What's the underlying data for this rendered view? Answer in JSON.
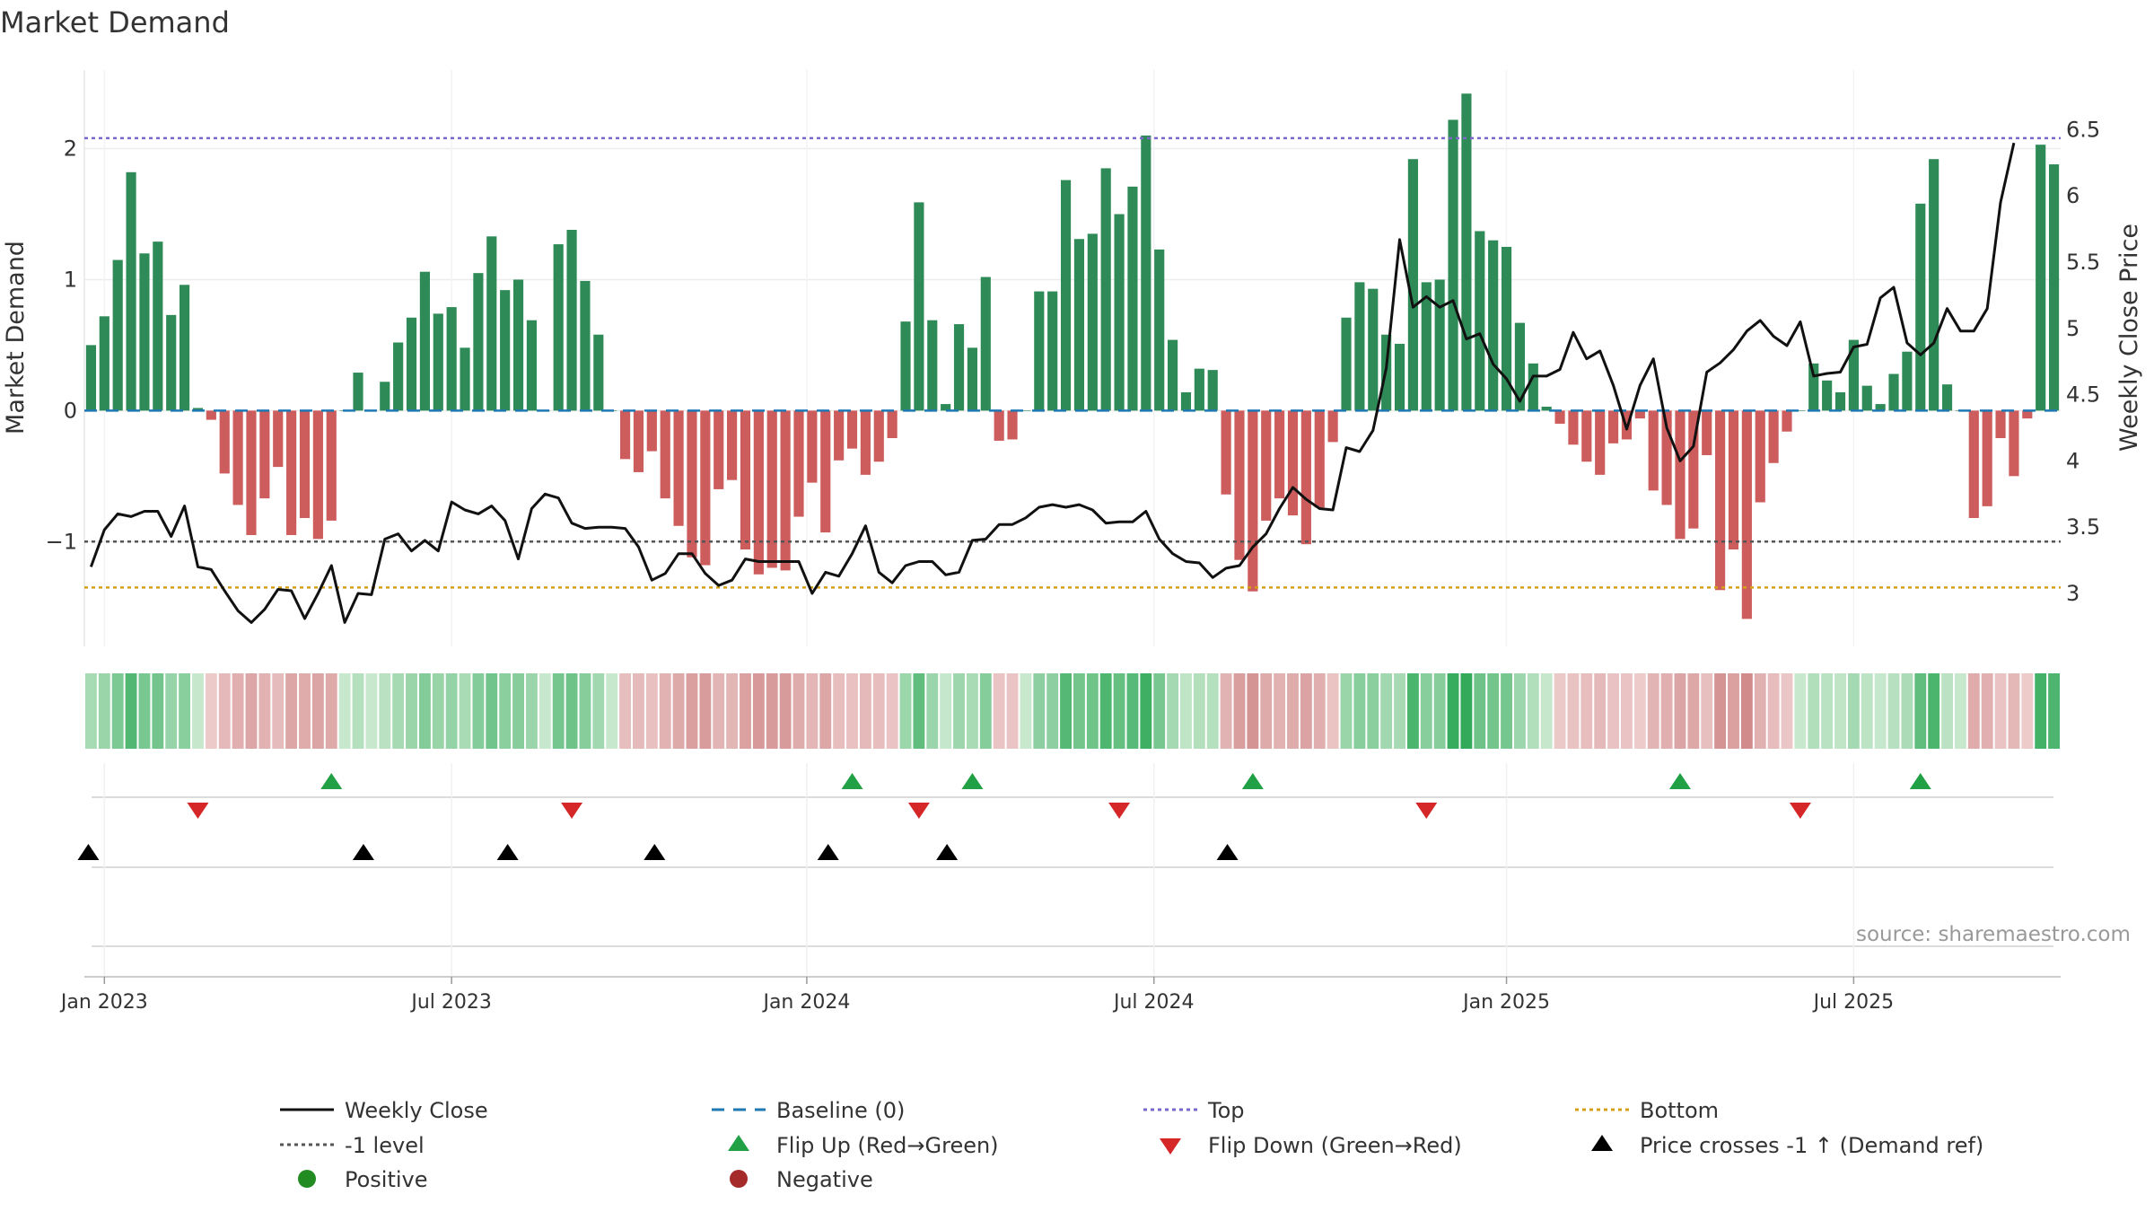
{
  "chart_data": {
    "type": "bar",
    "title": "Market Demand",
    "ylabel_left": "Market Demand",
    "ylabel_right": "Weekly Close Price",
    "ylim_left": [
      -1.8,
      2.6
    ],
    "ylim_right": [
      2.6,
      6.95
    ],
    "yticks_left": [
      {
        "v": 2,
        "t": "2"
      },
      {
        "v": 1,
        "t": "1"
      },
      {
        "v": 0,
        "t": "0"
      },
      {
        "v": -1,
        "t": "−1"
      }
    ],
    "yticks_right": [
      {
        "v": 6.5,
        "t": "6.5"
      },
      {
        "v": 6,
        "t": "6"
      },
      {
        "v": 5.5,
        "t": "5.5"
      },
      {
        "v": 5,
        "t": "5"
      },
      {
        "v": 4.5,
        "t": "4.5"
      },
      {
        "v": 4,
        "t": "4"
      },
      {
        "v": 3.5,
        "t": "3.5"
      },
      {
        "v": 3,
        "t": "3"
      }
    ],
    "xticks": [
      {
        "w": 0,
        "t": "Jan 2023"
      },
      {
        "w": 26,
        "t": "Jul 2023"
      },
      {
        "w": 52.6,
        "t": "Jan 2024"
      },
      {
        "w": 78.6,
        "t": "Jul 2024"
      },
      {
        "w": 105,
        "t": "Jan 2025"
      },
      {
        "w": 131,
        "t": "Jul 2025"
      }
    ],
    "week_start_offset": -1.5,
    "reference_lines": {
      "top": 2.08,
      "bottom": -1.35,
      "level": -1.0,
      "baseline": 0
    },
    "demand": [
      0.5,
      0.72,
      1.15,
      1.82,
      1.2,
      1.29,
      0.73,
      0.96,
      0.02,
      -0.07,
      -0.48,
      -0.72,
      -0.95,
      -0.67,
      -0.43,
      -0.95,
      -0.82,
      -0.98,
      -0.84,
      0.0,
      0.29,
      0.0,
      0.22,
      0.52,
      0.71,
      1.06,
      0.74,
      0.79,
      0.48,
      1.05,
      1.33,
      0.92,
      1.0,
      0.69,
      0.0,
      1.27,
      1.38,
      0.99,
      0.58,
      0.0,
      -0.37,
      -0.47,
      -0.31,
      -0.67,
      -0.88,
      -1.12,
      -1.18,
      -0.6,
      -0.53,
      -1.06,
      -1.25,
      -1.2,
      -1.22,
      -0.81,
      -0.55,
      -0.93,
      -0.38,
      -0.29,
      -0.49,
      -0.39,
      -0.21,
      0.68,
      1.59,
      0.69,
      0.05,
      0.66,
      0.48,
      1.02,
      -0.23,
      -0.22,
      0.0,
      0.91,
      0.91,
      1.76,
      1.31,
      1.35,
      1.85,
      1.5,
      1.71,
      2.1,
      1.23,
      0.54,
      0.14,
      0.32,
      0.31,
      -0.64,
      -1.14,
      -1.38,
      -0.84,
      -0.67,
      -0.8,
      -1.02,
      -0.74,
      -0.24,
      0.71,
      0.98,
      0.93,
      0.58,
      0.51,
      1.92,
      0.98,
      1.0,
      2.22,
      2.42,
      1.37,
      1.3,
      1.25,
      0.67,
      0.36,
      0.03,
      -0.1,
      -0.26,
      -0.39,
      -0.49,
      -0.25,
      -0.22,
      -0.06,
      -0.61,
      -0.72,
      -0.98,
      -0.9,
      -0.34,
      -1.37,
      -1.06,
      -1.59,
      -0.7,
      -0.4,
      -0.16,
      0.0,
      0.36,
      0.23,
      0.14,
      0.54,
      0.19,
      0.05,
      0.28,
      0.45,
      1.58,
      1.92,
      0.2,
      0.0,
      -0.82,
      -0.73,
      -0.21,
      -0.5,
      -0.06,
      2.03,
      1.88
    ],
    "weekly_close": [
      3.2,
      3.48,
      3.6,
      3.58,
      3.62,
      3.62,
      3.43,
      3.66,
      3.2,
      3.18,
      3.02,
      2.87,
      2.78,
      2.88,
      3.03,
      3.02,
      2.81,
      3.0,
      3.21,
      2.78,
      3.0,
      2.99,
      3.41,
      3.45,
      3.32,
      3.4,
      3.32,
      3.69,
      3.63,
      3.6,
      3.66,
      3.55,
      3.26,
      3.64,
      3.75,
      3.72,
      3.53,
      3.49,
      3.5,
      3.5,
      3.49,
      3.35,
      3.1,
      3.15,
      3.3,
      3.3,
      3.15,
      3.06,
      3.1,
      3.26,
      3.24,
      3.24,
      3.24,
      3.24,
      3.0,
      3.16,
      3.13,
      3.3,
      3.51,
      3.16,
      3.08,
      3.21,
      3.24,
      3.24,
      3.14,
      3.16,
      3.4,
      3.41,
      3.52,
      3.52,
      3.57,
      3.65,
      3.67,
      3.65,
      3.67,
      3.63,
      3.53,
      3.54,
      3.54,
      3.62,
      3.41,
      3.3,
      3.24,
      3.23,
      3.12,
      3.19,
      3.21,
      3.35,
      3.45,
      3.64,
      3.8,
      3.71,
      3.64,
      3.63,
      4.1,
      4.07,
      4.23,
      4.7,
      5.67,
      5.16,
      5.24,
      5.16,
      5.21,
      4.92,
      4.96,
      4.73,
      4.62,
      4.45,
      4.64,
      4.64,
      4.69,
      4.97,
      4.77,
      4.83,
      4.57,
      4.24,
      4.57,
      4.77,
      4.25,
      4.0,
      4.11,
      4.67,
      4.74,
      4.84,
      4.98,
      5.06,
      4.94,
      4.87,
      5.05,
      4.64,
      4.66,
      4.67,
      4.86,
      4.88,
      5.23,
      5.31,
      4.89,
      4.8,
      4.89,
      5.15,
      4.98,
      4.98,
      5.15,
      5.95,
      6.4
    ],
    "flip_up_weeks": [
      18,
      57,
      66,
      87,
      119,
      137
    ],
    "flip_down_weeks": [
      8,
      36,
      62,
      77,
      100,
      128
    ],
    "price_cross_weeks": [
      -0.2,
      20.4,
      31.2,
      42.2,
      55.2,
      64.1,
      85.1
    ],
    "colors": {
      "positive_bar": "#2e8b57",
      "negative_bar": "#cd5c5c",
      "price_line": "#111111",
      "baseline": "#1f77b4",
      "top": "#7b68c8",
      "bottom": "#d4a017",
      "level": "#555555",
      "flip_up": "#22a045",
      "flip_down": "#d62728",
      "price_cross": "#000000"
    }
  },
  "source": "source: sharemaestro.com",
  "legend": {
    "weekly_close": "Weekly Close",
    "baseline": "Baseline (0)",
    "top": "Top",
    "bottom": "Bottom",
    "level": "-1 level",
    "flip_up": "Flip Up (Red→Green)",
    "flip_down": "Flip Down (Green→Red)",
    "price_cross": "Price crosses -1 ↑ (Demand ref)",
    "positive": "Positive",
    "negative": "Negative"
  }
}
